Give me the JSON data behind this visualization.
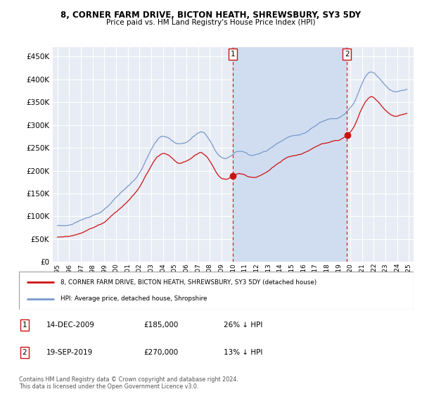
{
  "title": "8, CORNER FARM DRIVE, BICTON HEATH, SHREWSBURY, SY3 5DY",
  "subtitle": "Price paid vs. HM Land Registry's House Price Index (HPI)",
  "ylabel_ticks": [
    "£0",
    "£50K",
    "£100K",
    "£150K",
    "£200K",
    "£250K",
    "£300K",
    "£350K",
    "£400K",
    "£450K"
  ],
  "ytick_values": [
    0,
    50000,
    100000,
    150000,
    200000,
    250000,
    300000,
    350000,
    400000,
    450000
  ],
  "ylim": [
    0,
    470000
  ],
  "xlim_min": 1994.6,
  "xlim_max": 2025.4,
  "background_color": "#ffffff",
  "chart_bg_color": "#e8ecf4",
  "chart_bg_color_shaded": "#d0ddf0",
  "grid_color": "#ffffff",
  "hpi_color": "#7799cc",
  "price_color": "#cc1111",
  "transaction1_date": "14-DEC-2009",
  "transaction1_price": 185000,
  "transaction1_label": "26% ↓ HPI",
  "transaction1_year": 2009.96,
  "transaction2_date": "19-SEP-2019",
  "transaction2_price": 270000,
  "transaction2_label": "13% ↓ HPI",
  "transaction2_year": 2019.72,
  "legend_line1": "8, CORNER FARM DRIVE, BICTON HEATH, SHREWSBURY, SY3 5DY (detached house)",
  "legend_line2": "HPI: Average price, detached house, Shropshire",
  "footer": "Contains HM Land Registry data © Crown copyright and database right 2024.\nThis data is licensed under the Open Government Licence v3.0."
}
